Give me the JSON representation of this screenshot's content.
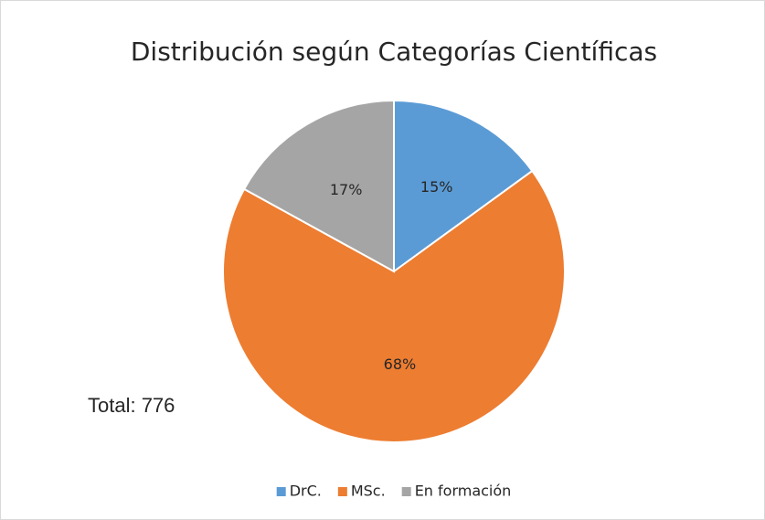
{
  "chart_data": {
    "type": "pie",
    "title": "Distribución según Categorías Científicas",
    "categories": [
      "DrC.",
      "MSc.",
      "En formación"
    ],
    "values": [
      15,
      68,
      17
    ],
    "value_labels": [
      "15%",
      "68%",
      "17%"
    ],
    "colors": [
      "#5b9bd5",
      "#ed7d31",
      "#a5a5a5"
    ],
    "annotations": [
      "Total: 776"
    ],
    "legend": "bottom"
  }
}
